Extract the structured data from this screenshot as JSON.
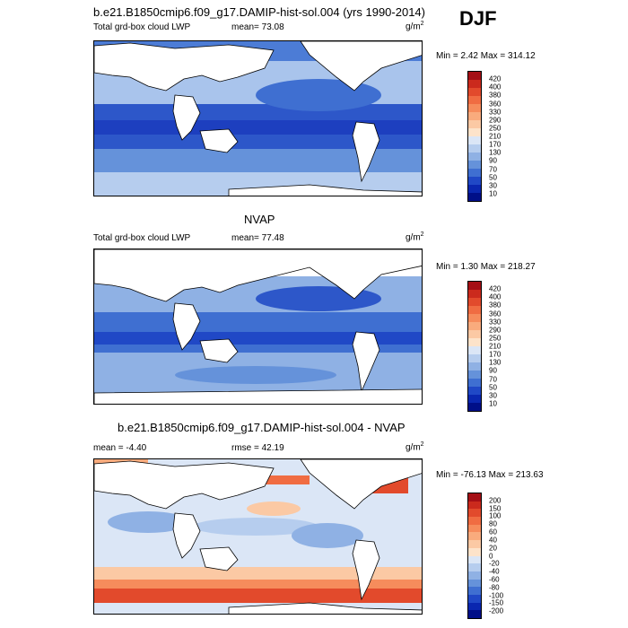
{
  "season": "DJF",
  "panels": [
    {
      "title": "b.e21.B1850cmip6.f09_g17.DAMIP-hist-sol.004 (yrs 1990-2014)",
      "left_label": "Total grd-box cloud LWP",
      "mean_label": "mean=  73.08",
      "units": "g/m",
      "units_sup": "2",
      "minmax": "Min =   2.42 Max = 314.12",
      "colorbar_labels": [
        "420",
        "400",
        "380",
        "360",
        "330",
        "290",
        "250",
        "210",
        "170",
        "130",
        "90",
        "70",
        "50",
        "30",
        "10"
      ],
      "colors": [
        "#a50f15",
        "#cb2a1d",
        "#e24a2c",
        "#f06c42",
        "#f68c5c",
        "#f9ab7d",
        "#fbc9a4",
        "#fde3ca",
        "#dbe6f6",
        "#b6cdee",
        "#8fb1e4",
        "#6592da",
        "#3f6fd1",
        "#2048c6",
        "#0a27b0",
        "#000f88"
      ]
    },
    {
      "title": "NVAP",
      "left_label": "Total grd-box cloud LWP",
      "mean_label": "mean=  77.48",
      "units": "g/m",
      "units_sup": "2",
      "minmax": "Min =   1.30 Max = 218.27",
      "colorbar_labels": [
        "420",
        "400",
        "380",
        "360",
        "330",
        "290",
        "250",
        "210",
        "170",
        "130",
        "90",
        "70",
        "50",
        "30",
        "10"
      ],
      "colors": [
        "#a50f15",
        "#cb2a1d",
        "#e24a2c",
        "#f06c42",
        "#f68c5c",
        "#f9ab7d",
        "#fbc9a4",
        "#fde3ca",
        "#dbe6f6",
        "#b6cdee",
        "#8fb1e4",
        "#6592da",
        "#3f6fd1",
        "#2048c6",
        "#0a27b0",
        "#000f88"
      ]
    },
    {
      "title": "b.e21.B1850cmip6.f09_g17.DAMIP-hist-sol.004 - NVAP",
      "left_label": "mean = -4.40",
      "mean_label": "rmse =  42.19",
      "units": "g/m",
      "units_sup": "2",
      "minmax": "Min = -76.13 Max = 213.63",
      "colorbar_labels": [
        "200",
        "150",
        "100",
        "80",
        "60",
        "40",
        "20",
        "0",
        "-20",
        "-40",
        "-60",
        "-80",
        "-100",
        "-150",
        "-200"
      ],
      "colors": [
        "#a50f15",
        "#cb2a1d",
        "#e24a2c",
        "#f06c42",
        "#f68c5c",
        "#f9ab7d",
        "#fbc9a4",
        "#fde3ca",
        "#dbe6f6",
        "#b6cdee",
        "#8fb1e4",
        "#6592da",
        "#3f6fd1",
        "#2048c6",
        "#0a27b0",
        "#000f88"
      ]
    }
  ]
}
